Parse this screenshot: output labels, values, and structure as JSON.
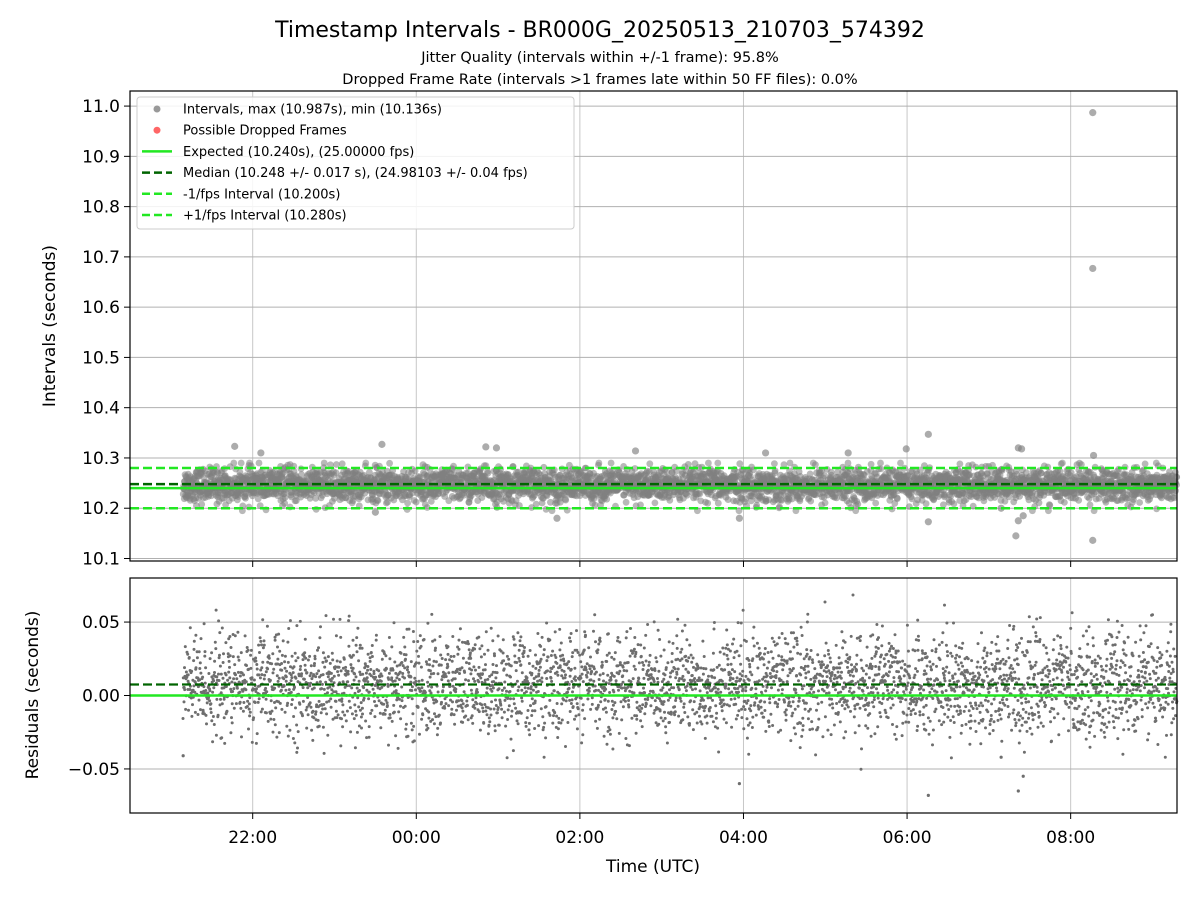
{
  "figure": {
    "title": "Timestamp Intervals - BR000G_20250513_210703_574392",
    "subtitle_1": "Jitter Quality (intervals within +/-1 frame): 95.8%",
    "subtitle_2": "Dropped Frame Rate (intervals >1 frames late within 50 FF files): 0.0%"
  },
  "colors": {
    "points": "#808080",
    "dropped": "#ff6666",
    "expected": "#22e822",
    "median": "#006400",
    "band": "#22e822",
    "grid": "#b0b0b0"
  },
  "chart_data": [
    {
      "type": "scatter",
      "name": "intervals-panel",
      "ylabel": "Intervals (seconds)",
      "xlabel": "",
      "x_unit": "hours since 20:00 UTC",
      "xlim": [
        0.5,
        13.3
      ],
      "ylim": [
        10.095,
        11.03
      ],
      "yticks": [
        10.1,
        10.2,
        10.3,
        10.4,
        10.5,
        10.6,
        10.7,
        10.8,
        10.9,
        11.0
      ],
      "ytick_labels": [
        "10.1",
        "10.2",
        "10.3",
        "10.4",
        "10.5",
        "10.6",
        "10.7",
        "10.8",
        "10.9",
        "11.0"
      ],
      "xticks": [
        2,
        4,
        6,
        8,
        10,
        12
      ],
      "grid": true,
      "legend_position": "top-left",
      "legend": [
        {
          "label": "Intervals, max (10.987s), min (10.136s)",
          "kind": "dot",
          "color": "#999999"
        },
        {
          "label": "Possible Dropped Frames",
          "kind": "dot",
          "color": "#ff6666"
        },
        {
          "label": "Expected (10.240s), (25.00000 fps)",
          "kind": "solid",
          "color": "#22e822"
        },
        {
          "label": "Median (10.248 +/- 0.017 s), (24.98103 +/- 0.04 fps)",
          "kind": "dashed",
          "color": "#006400"
        },
        {
          "label": "-1/fps Interval (10.200s)",
          "kind": "dashed",
          "color": "#22e822"
        },
        {
          "label": "+1/fps Interval (10.280s)",
          "kind": "dashed",
          "color": "#22e822"
        }
      ],
      "lines": {
        "expected": 10.24,
        "median": 10.248,
        "lower": 10.2,
        "upper": 10.28
      },
      "stats": {
        "max": 10.987,
        "min": 10.136,
        "median": 10.248,
        "std": 0.017,
        "count": 3900,
        "x_start": 1.15,
        "x_end": 13.3
      },
      "outliers": [
        {
          "x": 12.27,
          "y": 10.987
        },
        {
          "x": 12.27,
          "y": 10.677
        },
        {
          "x": 12.27,
          "y": 10.136
        },
        {
          "x": 10.26,
          "y": 10.347
        },
        {
          "x": 10.26,
          "y": 10.173
        },
        {
          "x": 11.33,
          "y": 10.145
        },
        {
          "x": 11.36,
          "y": 10.32
        },
        {
          "x": 11.4,
          "y": 10.318
        },
        {
          "x": 11.36,
          "y": 10.175
        },
        {
          "x": 11.42,
          "y": 10.185
        },
        {
          "x": 9.99,
          "y": 10.318
        },
        {
          "x": 1.78,
          "y": 10.323
        },
        {
          "x": 3.58,
          "y": 10.327
        },
        {
          "x": 4.85,
          "y": 10.322
        },
        {
          "x": 4.98,
          "y": 10.32
        },
        {
          "x": 6.68,
          "y": 10.314
        },
        {
          "x": 8.27,
          "y": 10.31
        },
        {
          "x": 9.28,
          "y": 10.31
        },
        {
          "x": 3.5,
          "y": 10.192
        },
        {
          "x": 5.72,
          "y": 10.18
        },
        {
          "x": 7.95,
          "y": 10.18
        },
        {
          "x": 11.15,
          "y": 10.2
        },
        {
          "x": 12.28,
          "y": 10.305
        },
        {
          "x": 2.1,
          "y": 10.31
        }
      ]
    },
    {
      "type": "scatter",
      "name": "residuals-panel",
      "ylabel": "Residuals (seconds)",
      "xlabel": "Time (UTC)",
      "xlim": [
        0.5,
        13.3
      ],
      "ylim": [
        -0.08,
        0.08
      ],
      "yticks": [
        -0.05,
        0.0,
        0.05
      ],
      "ytick_labels": [
        "−0.05",
        "0.00",
        "0.05"
      ],
      "xticks": [
        2,
        4,
        6,
        8,
        10,
        12
      ],
      "xtick_labels": [
        "22:00",
        "00:00",
        "02:00",
        "04:00",
        "06:00",
        "08:00"
      ],
      "grid": true,
      "lines": {
        "zero": 0.0,
        "median": 0.0075
      },
      "stats": {
        "mean": 0.0075,
        "std": 0.017,
        "count": 3900,
        "x_start": 1.15,
        "x_end": 13.3
      },
      "outliers": [
        {
          "x": 10.26,
          "y": -0.068
        },
        {
          "x": 11.36,
          "y": -0.065
        },
        {
          "x": 11.42,
          "y": -0.055
        },
        {
          "x": 7.95,
          "y": -0.06
        },
        {
          "x": 1.15,
          "y": -0.041
        },
        {
          "x": 11.15,
          "y": -0.042
        }
      ]
    }
  ]
}
